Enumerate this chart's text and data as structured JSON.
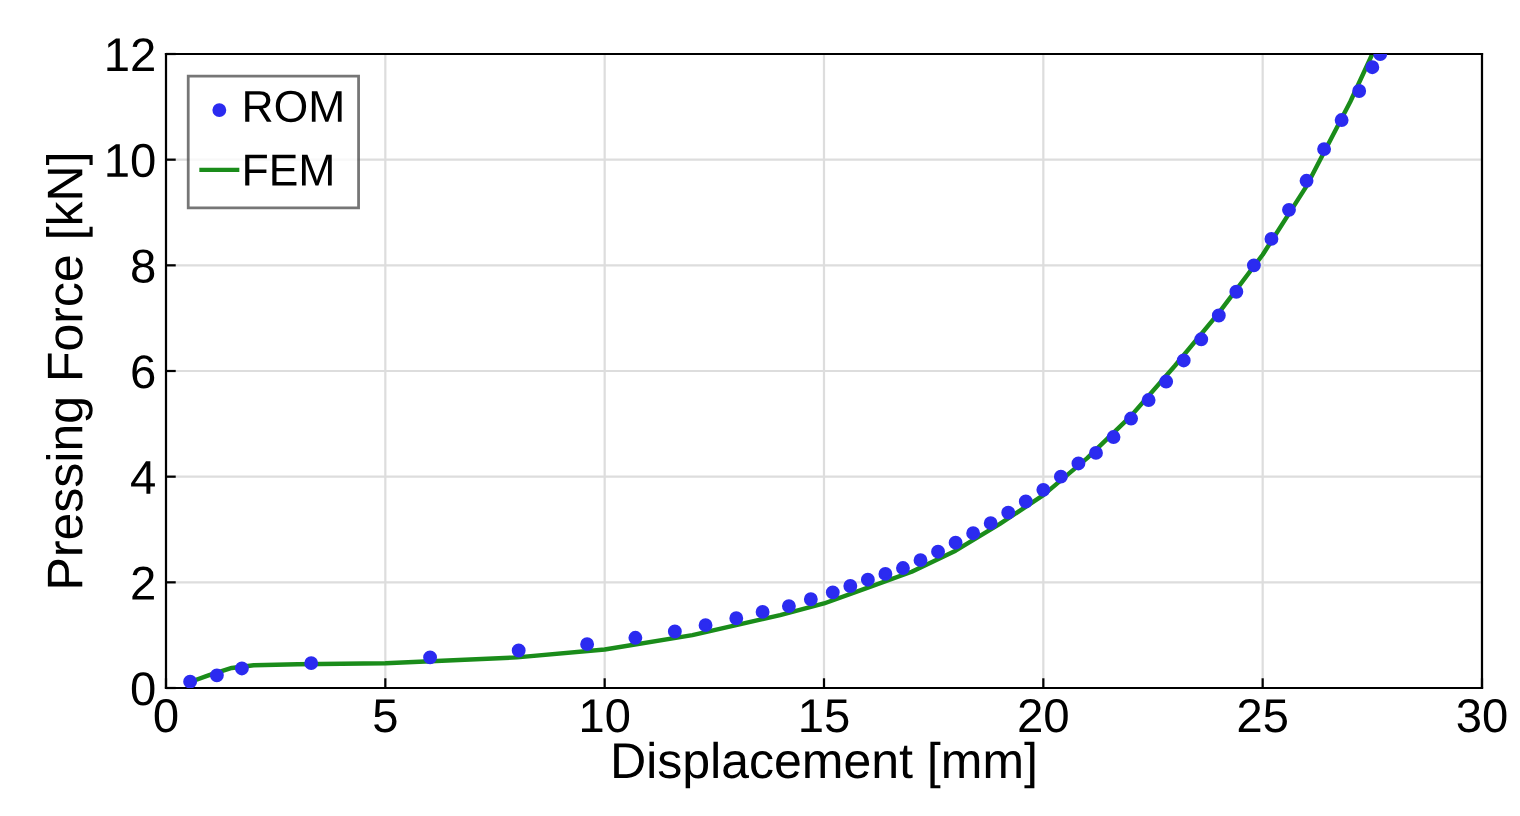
{
  "chart_data": {
    "type": "line",
    "xlabel": "Displacement [mm]",
    "ylabel": "Pressing Force [kN]",
    "xlim": [
      0,
      30
    ],
    "ylim": [
      0,
      12
    ],
    "xticks": [
      0,
      5,
      10,
      15,
      20,
      25,
      30
    ],
    "yticks": [
      0,
      2,
      4,
      6,
      8,
      10,
      12
    ],
    "grid": true,
    "legend": "top left",
    "series": [
      {
        "name": "ROM",
        "type": "scatter",
        "marker": "circle",
        "color": "#2b2bf0",
        "x": [
          0.55,
          1.16,
          1.73,
          3.31,
          6.02,
          8.04,
          9.6,
          10.7,
          11.6,
          12.3,
          13.0,
          13.6,
          14.2,
          14.7,
          15.2,
          15.6,
          16.0,
          16.4,
          16.8,
          17.2,
          17.6,
          18.0,
          18.4,
          18.8,
          19.2,
          19.6,
          20.0,
          20.4,
          20.8,
          21.2,
          21.6,
          22.0,
          22.4,
          22.8,
          23.2,
          23.6,
          24.0,
          24.4,
          24.8,
          25.2,
          25.6,
          26.0,
          26.4,
          26.8,
          27.2,
          27.5,
          27.68
        ],
        "values": [
          0.12,
          0.24,
          0.37,
          0.47,
          0.58,
          0.71,
          0.83,
          0.95,
          1.07,
          1.19,
          1.32,
          1.44,
          1.55,
          1.68,
          1.81,
          1.93,
          2.05,
          2.16,
          2.27,
          2.42,
          2.58,
          2.75,
          2.93,
          3.12,
          3.32,
          3.53,
          3.75,
          4.0,
          4.25,
          4.45,
          4.75,
          5.1,
          5.45,
          5.8,
          6.2,
          6.6,
          7.05,
          7.5,
          8.0,
          8.5,
          9.05,
          9.6,
          10.2,
          10.75,
          11.3,
          11.75,
          12.0
        ]
      },
      {
        "name": "FEM",
        "line_style": "solid",
        "color": "#1a8c1a",
        "x": [
          0.5,
          1.0,
          1.5,
          2.0,
          3.0,
          5.0,
          8.0,
          10.0,
          12.0,
          14.0,
          15.0,
          16.0,
          17.0,
          18.0,
          19.0,
          20.0,
          21.0,
          22.0,
          23.0,
          24.0,
          25.0,
          26.0,
          27.0,
          27.5
        ],
        "values": [
          0.1,
          0.25,
          0.38,
          0.43,
          0.45,
          0.47,
          0.58,
          0.73,
          1.0,
          1.38,
          1.6,
          1.9,
          2.2,
          2.6,
          3.1,
          3.65,
          4.35,
          5.15,
          6.1,
          7.1,
          8.2,
          9.5,
          11.1,
          12.0
        ]
      }
    ]
  }
}
